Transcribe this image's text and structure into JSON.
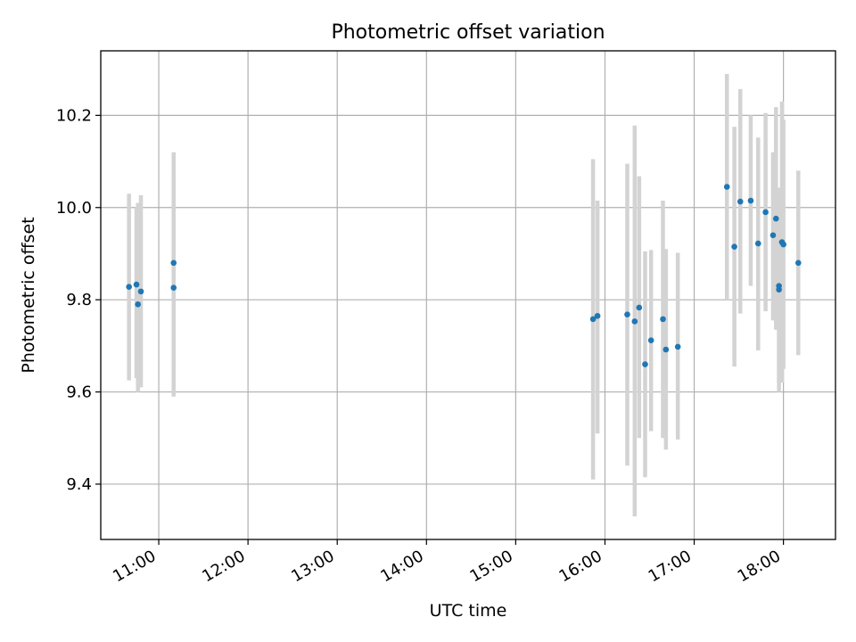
{
  "chart_data": {
    "type": "scatter",
    "title": "Photometric offset variation",
    "xlabel": "UTC time",
    "ylabel": "Photometric offset",
    "xlim": [
      "10:21",
      "18:35"
    ],
    "ylim": [
      9.28,
      10.34
    ],
    "x_ticks": [
      "11:00",
      "12:00",
      "13:00",
      "14:00",
      "15:00",
      "16:00",
      "17:00",
      "18:00"
    ],
    "y_ticks": [
      9.4,
      9.6,
      9.8,
      10.0,
      10.2
    ],
    "y_tick_labels": [
      "9.4",
      "9.6",
      "9.8",
      "10.0",
      "10.2"
    ],
    "grid": true,
    "point_color": "#1f77b4",
    "errorbar_color": "#d3d3d3",
    "series": [
      {
        "points": [
          {
            "x": "10:40",
            "y": 9.828,
            "lo": 9.625,
            "hi": 10.03
          },
          {
            "x": "10:45",
            "y": 9.833,
            "lo": 9.63,
            "hi": 10.0
          },
          {
            "x": "10:46",
            "y": 9.79,
            "lo": 9.6,
            "hi": 10.01
          },
          {
            "x": "10:48",
            "y": 9.818,
            "lo": 9.61,
            "hi": 10.027
          },
          {
            "x": "11:10",
            "y": 9.826,
            "lo": 9.59,
            "hi": 10.065
          },
          {
            "x": "11:10",
            "y": 9.88,
            "lo": 9.64,
            "hi": 10.12
          },
          {
            "x": "15:52",
            "y": 9.758,
            "lo": 9.41,
            "hi": 10.105
          },
          {
            "x": "15:55",
            "y": 9.765,
            "lo": 9.51,
            "hi": 10.015
          },
          {
            "x": "16:15",
            "y": 9.768,
            "lo": 9.44,
            "hi": 10.095
          },
          {
            "x": "16:20",
            "y": 9.753,
            "lo": 9.33,
            "hi": 10.178
          },
          {
            "x": "16:23",
            "y": 9.783,
            "lo": 9.5,
            "hi": 10.068
          },
          {
            "x": "16:27",
            "y": 9.66,
            "lo": 9.415,
            "hi": 9.905
          },
          {
            "x": "16:31",
            "y": 9.712,
            "lo": 9.515,
            "hi": 9.908
          },
          {
            "x": "16:39",
            "y": 9.758,
            "lo": 9.5,
            "hi": 10.015
          },
          {
            "x": "16:41",
            "y": 9.692,
            "lo": 9.475,
            "hi": 9.91
          },
          {
            "x": "16:49",
            "y": 9.698,
            "lo": 9.497,
            "hi": 9.902
          },
          {
            "x": "17:22",
            "y": 10.045,
            "lo": 9.8,
            "hi": 10.29
          },
          {
            "x": "17:27",
            "y": 9.915,
            "lo": 9.655,
            "hi": 10.175
          },
          {
            "x": "17:31",
            "y": 10.013,
            "lo": 9.77,
            "hi": 10.257
          },
          {
            "x": "17:38",
            "y": 10.015,
            "lo": 9.83,
            "hi": 10.2
          },
          {
            "x": "17:43",
            "y": 9.922,
            "lo": 9.69,
            "hi": 10.152
          },
          {
            "x": "17:48",
            "y": 9.99,
            "lo": 9.775,
            "hi": 10.205
          },
          {
            "x": "17:53",
            "y": 9.94,
            "lo": 9.755,
            "hi": 10.12
          },
          {
            "x": "17:55",
            "y": 9.976,
            "lo": 9.735,
            "hi": 10.218
          },
          {
            "x": "17:57",
            "y": 9.822,
            "lo": 9.6,
            "hi": 10.043
          },
          {
            "x": "17:57",
            "y": 9.83,
            "lo": 9.62,
            "hi": 10.04
          },
          {
            "x": "17:59",
            "y": 9.925,
            "lo": 9.62,
            "hi": 10.23
          },
          {
            "x": "18:00",
            "y": 9.92,
            "lo": 9.65,
            "hi": 10.19
          },
          {
            "x": "18:10",
            "y": 9.88,
            "lo": 9.68,
            "hi": 10.08
          }
        ]
      }
    ]
  }
}
